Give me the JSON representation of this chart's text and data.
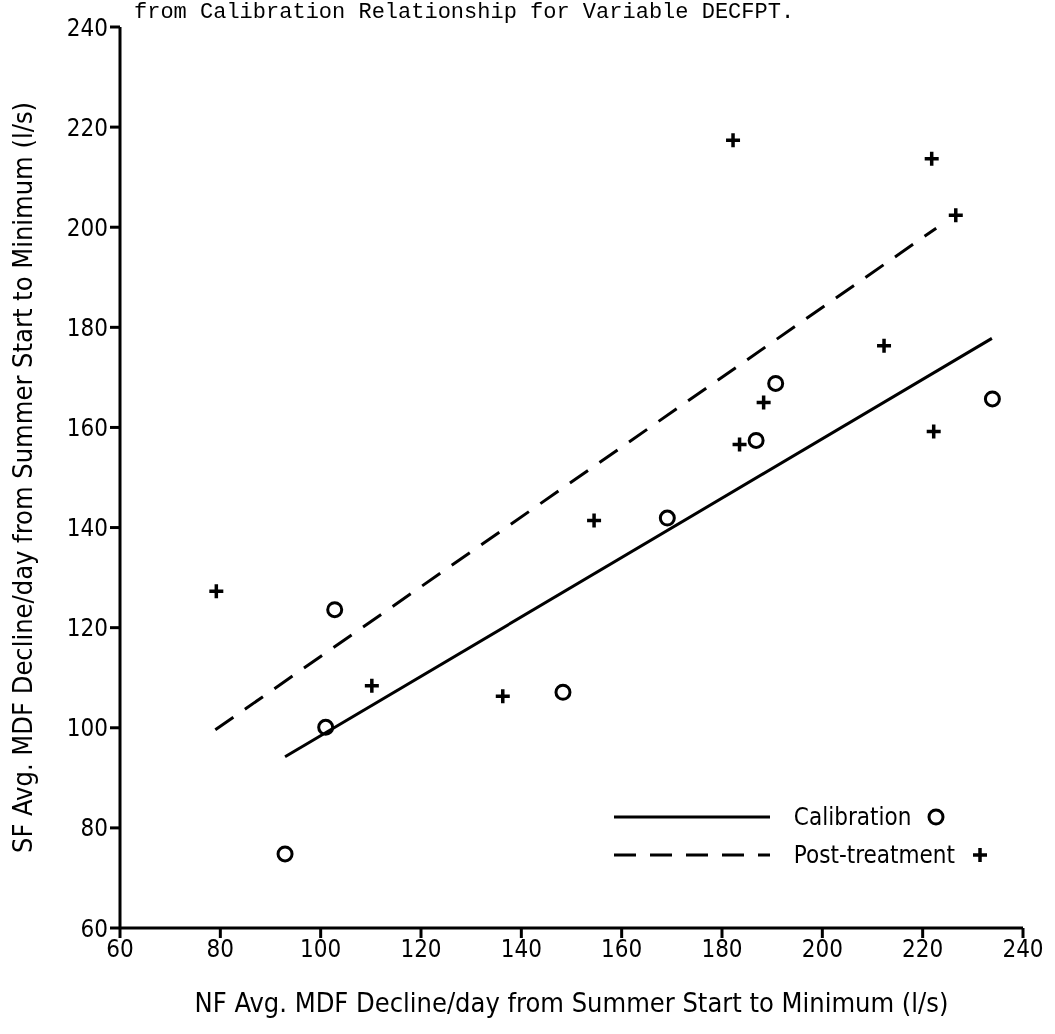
{
  "chart_data": {
    "type": "scatter",
    "title": "from Calibration Relationship for Variable DECFPT.",
    "xlabel": "NF Avg. MDF Decline/day from Summer Start to Minimum (l/s)",
    "ylabel": "SF Avg. MDF Decline/day from Summer Start to Minimum (l/s)",
    "xlim": [
      60,
      240
    ],
    "xticks": [
      60,
      80,
      100,
      120,
      140,
      160,
      180,
      200,
      220,
      240
    ],
    "ylim": [
      60,
      240
    ],
    "yticks": [
      60,
      80,
      100,
      120,
      140,
      160,
      180,
      200,
      220,
      240
    ],
    "grid": false,
    "legend": "bottom right",
    "series": [
      {
        "name": "Calibration",
        "marker": "circle",
        "color": "#000000",
        "x": [
          92.9,
          101.0,
          102.8,
          148.3,
          169.1,
          186.8,
          190.7,
          233.9
        ],
        "values": [
          74.8,
          100.1,
          123.6,
          107.1,
          141.9,
          157.4,
          168.8,
          165.7
        ]
      },
      {
        "name": "Post-treatment",
        "marker": "cross",
        "color": "#000000",
        "x": [
          79.2,
          110.2,
          136.3,
          154.5,
          182.2,
          183.5,
          188.3,
          212.3,
          221.8,
          222.2,
          226.6
        ],
        "values": [
          127.3,
          108.4,
          106.3,
          141.4,
          217.4,
          156.6,
          165.0,
          176.3,
          213.7,
          159.2,
          202.4
        ]
      },
      {
        "type": "line",
        "line_style": "solid",
        "marker": "none",
        "color": "#000000",
        "x": [
          92.9,
          233.8
        ],
        "values": [
          94.2,
          177.8
        ]
      },
      {
        "type": "line",
        "line_style": "dashed",
        "marker": "none",
        "color": "#000000",
        "x": [
          79.0,
          222.7
        ],
        "values": [
          99.6,
          199.8
        ]
      }
    ]
  }
}
